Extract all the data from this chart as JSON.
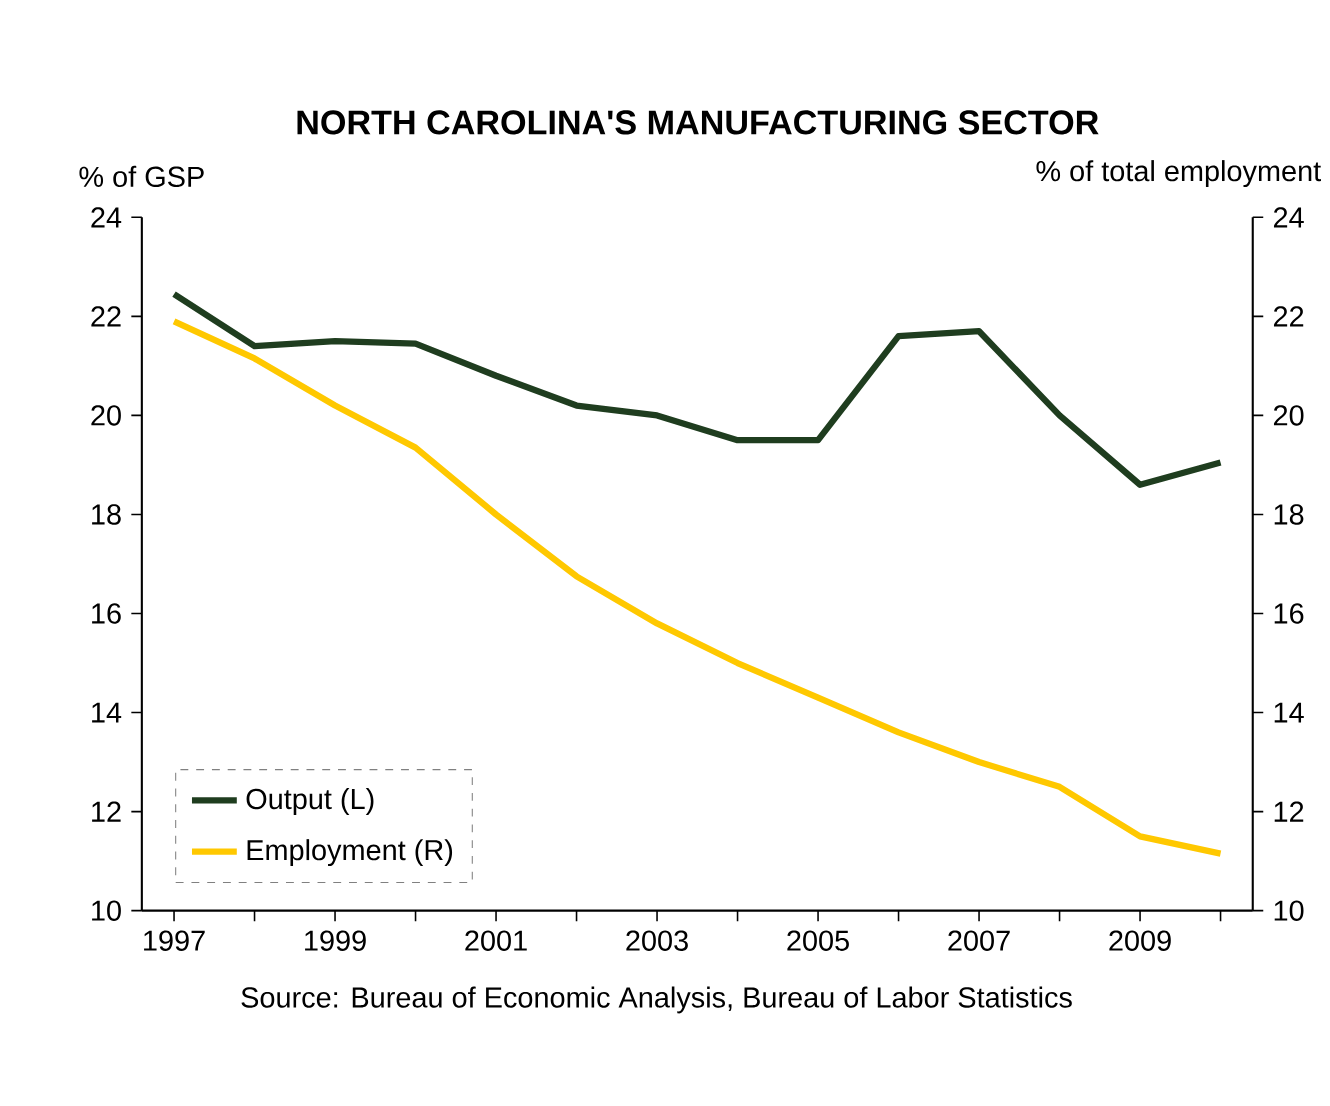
{
  "chart_data": {
    "type": "line",
    "title": "NORTH CAROLINA'S MANUFACTURING SECTOR",
    "ylabel": "% of GSP",
    "y2label": "% of total employment",
    "x": [
      1997,
      1998,
      1999,
      2000,
      2001,
      2002,
      2003,
      2004,
      2005,
      2006,
      2007,
      2008,
      2009,
      2010
    ],
    "series": [
      {
        "name": "Output (L)",
        "color": "#1f3d1f",
        "values": [
          22.45,
          21.4,
          21.5,
          21.45,
          20.8,
          20.2,
          20.0,
          19.5,
          19.5,
          21.6,
          21.7,
          20.0,
          18.6,
          19.05
        ]
      },
      {
        "name": "Employment (R)",
        "color": "#ffc800",
        "axis": "y2",
        "values": [
          21.9,
          21.15,
          20.2,
          19.35,
          18.0,
          16.75,
          15.8,
          15.0,
          14.3,
          13.6,
          13.0,
          12.5,
          11.5,
          11.15
        ]
      }
    ],
    "xlim": [
      1996.6,
      2010.4
    ],
    "xticks": [
      1997,
      {
        "value": 1998,
        "label": null
      },
      1999,
      {
        "value": 2000,
        "label": null
      },
      2001,
      {
        "value": 2002,
        "label": null
      },
      2003,
      {
        "value": 2004,
        "label": null
      },
      2005,
      {
        "value": 2006,
        "label": null
      },
      2007,
      {
        "value": 2008,
        "label": null
      },
      2009,
      {
        "value": 2010,
        "label": null
      }
    ],
    "ylim": [
      10,
      24
    ],
    "yticks": [
      10,
      12,
      14,
      16,
      18,
      20,
      22,
      24
    ],
    "y2lim": [
      10,
      24
    ],
    "y2ticks": [
      10,
      12,
      14,
      16,
      18,
      20,
      22,
      24
    ],
    "legend": "bottom left",
    "grid": false,
    "line_style": "solid",
    "annotations": [
      "Source: Bureau of Economic Analysis, Bureau of Labor Statistics"
    ]
  }
}
